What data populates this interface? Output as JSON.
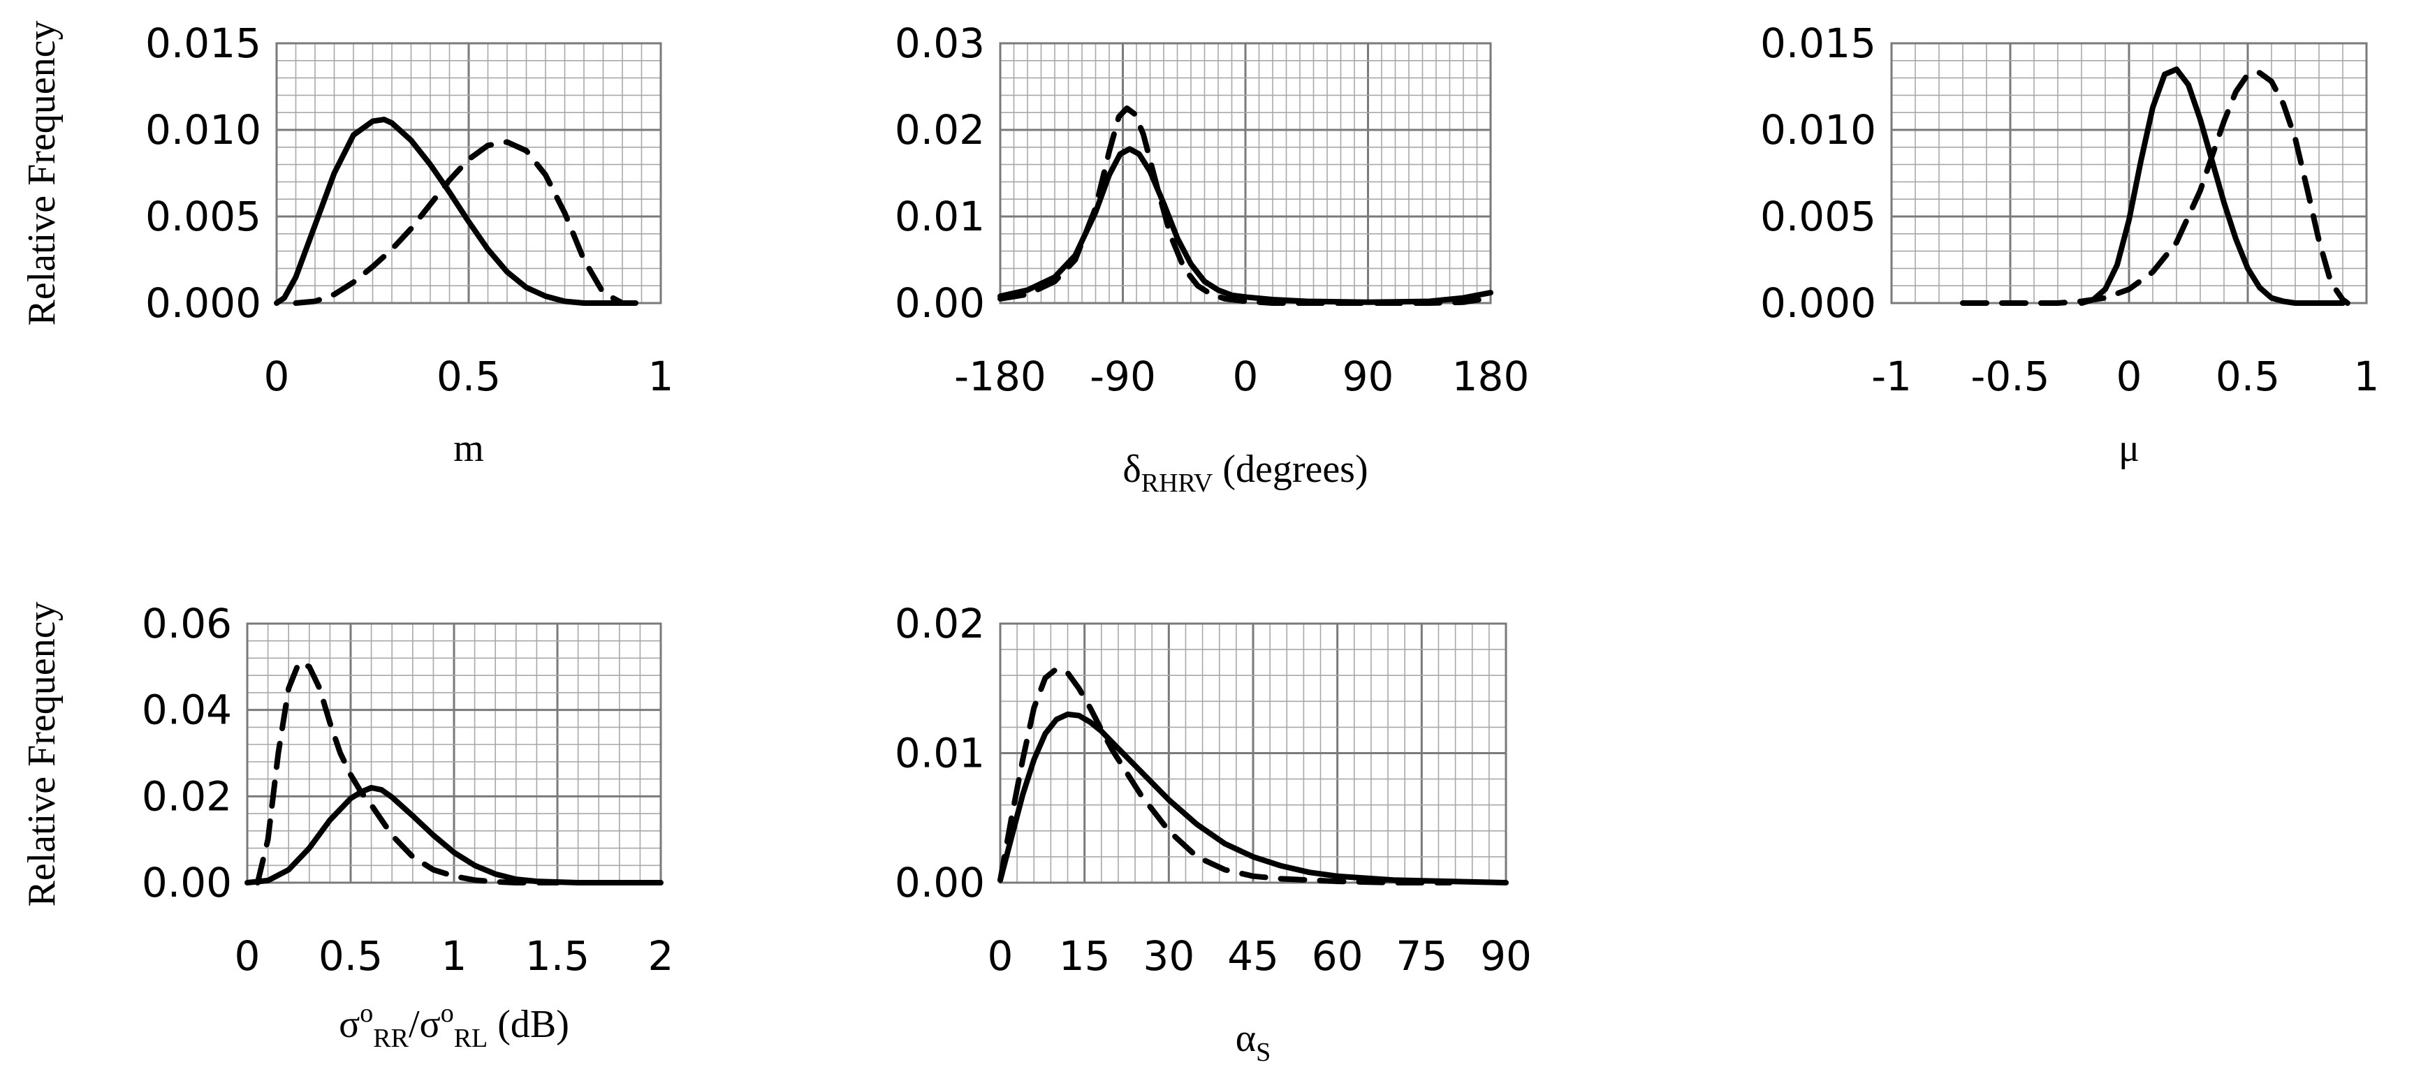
{
  "y_axis_title": "Relative Frequency",
  "chart_data": [
    {
      "type": "line",
      "id": "m",
      "xlabel": "m",
      "ylabel": "Relative Frequency",
      "xlim": [
        0,
        1
      ],
      "ylim": [
        0,
        0.015
      ],
      "xticks": [
        0,
        0.5,
        1
      ],
      "xtick_labels": [
        "0",
        "0.5",
        "1"
      ],
      "yticks": [
        0,
        0.005,
        0.01,
        0.015
      ],
      "ytick_labels": [
        "0.000",
        "0.005",
        "0.010",
        "0.015"
      ],
      "x_minor": 0.05,
      "y_minor": 0.001,
      "series": [
        {
          "name": "solid",
          "style": "solid",
          "x": [
            0,
            0.02,
            0.05,
            0.1,
            0.15,
            0.2,
            0.25,
            0.28,
            0.3,
            0.35,
            0.4,
            0.45,
            0.5,
            0.55,
            0.6,
            0.65,
            0.7,
            0.75,
            0.8,
            0.85,
            0.9
          ],
          "y": [
            0,
            0.0003,
            0.0015,
            0.0045,
            0.0075,
            0.0097,
            0.0105,
            0.0106,
            0.0104,
            0.0094,
            0.008,
            0.0064,
            0.0047,
            0.0031,
            0.0018,
            0.0009,
            0.0004,
            0.0001,
            0,
            0,
            0
          ]
        },
        {
          "name": "dashed",
          "style": "dashed",
          "x": [
            0.05,
            0.1,
            0.15,
            0.2,
            0.25,
            0.3,
            0.35,
            0.4,
            0.45,
            0.5,
            0.55,
            0.6,
            0.65,
            0.7,
            0.75,
            0.8,
            0.85,
            0.9,
            0.95
          ],
          "y": [
            0,
            0.0001,
            0.0005,
            0.0012,
            0.0021,
            0.0031,
            0.0043,
            0.0057,
            0.0071,
            0.0083,
            0.0091,
            0.0093,
            0.0088,
            0.0074,
            0.0052,
            0.0025,
            0.0006,
            0,
            0
          ]
        }
      ]
    },
    {
      "type": "line",
      "id": "delta",
      "xlabel_main": "δ",
      "xlabel_sub": "RHRV",
      "xlabel_suffix": " (degrees)",
      "xlim": [
        -180,
        180
      ],
      "ylim": [
        0,
        0.03
      ],
      "xticks": [
        -180,
        -90,
        0,
        90,
        180
      ],
      "xtick_labels": [
        "-180",
        "-90",
        "0",
        "90",
        "180"
      ],
      "yticks": [
        0,
        0.01,
        0.02,
        0.03
      ],
      "ytick_labels": [
        "0.00",
        "0.01",
        "0.02",
        "0.03"
      ],
      "x_minor": 10,
      "y_minor": 0.002,
      "series": [
        {
          "name": "solid",
          "style": "solid",
          "x": [
            -180,
            -160,
            -140,
            -125,
            -110,
            -100,
            -92,
            -85,
            -78,
            -70,
            -60,
            -50,
            -40,
            -30,
            -20,
            -10,
            0,
            20,
            45,
            90,
            135,
            160,
            180
          ],
          "y": [
            0.0008,
            0.0015,
            0.003,
            0.0055,
            0.0105,
            0.0148,
            0.0172,
            0.0178,
            0.0172,
            0.0152,
            0.0115,
            0.0075,
            0.0045,
            0.0025,
            0.0015,
            0.0009,
            0.0007,
            0.0004,
            0.0002,
            0.0001,
            0.0002,
            0.0006,
            0.0012
          ]
        },
        {
          "name": "dashed",
          "style": "dashed",
          "x": [
            -180,
            -160,
            -140,
            -125,
            -110,
            -100,
            -93,
            -87,
            -81,
            -75,
            -65,
            -55,
            -45,
            -35,
            -25,
            -15,
            0,
            20,
            40,
            90,
            135,
            160,
            180
          ],
          "y": [
            0.0005,
            0.001,
            0.0025,
            0.005,
            0.011,
            0.0175,
            0.0215,
            0.0225,
            0.0218,
            0.0195,
            0.0135,
            0.0078,
            0.004,
            0.002,
            0.001,
            0.0005,
            0.0002,
            0,
            0,
            0,
            0,
            0.0001,
            0.0006
          ]
        }
      ]
    },
    {
      "type": "line",
      "id": "mu",
      "xlabel": "μ",
      "xlim": [
        -1,
        1
      ],
      "ylim": [
        0,
        0.015
      ],
      "xticks": [
        -1,
        -0.5,
        0,
        0.5,
        1
      ],
      "xtick_labels": [
        "-1",
        "-0.5",
        "0",
        "0.5",
        "1"
      ],
      "yticks": [
        0,
        0.005,
        0.01,
        0.015
      ],
      "ytick_labels": [
        "0.000",
        "0.005",
        "0.010",
        "0.015"
      ],
      "x_minor": 0.1,
      "y_minor": 0.001,
      "series": [
        {
          "name": "solid",
          "style": "solid",
          "x": [
            -0.2,
            -0.15,
            -0.1,
            -0.05,
            0,
            0.05,
            0.1,
            0.15,
            0.2,
            0.25,
            0.3,
            0.35,
            0.4,
            0.45,
            0.5,
            0.55,
            0.6,
            0.65,
            0.7,
            0.8,
            0.9
          ],
          "y": [
            0,
            0.0002,
            0.0008,
            0.0022,
            0.0048,
            0.0082,
            0.0113,
            0.0132,
            0.0135,
            0.0126,
            0.0106,
            0.0082,
            0.0058,
            0.0037,
            0.002,
            0.0009,
            0.0003,
            0.0001,
            0,
            0,
            0
          ]
        },
        {
          "name": "dashed",
          "style": "dashed",
          "x": [
            -0.7,
            -0.5,
            -0.3,
            -0.2,
            -0.1,
            0,
            0.1,
            0.2,
            0.3,
            0.35,
            0.4,
            0.45,
            0.5,
            0.55,
            0.6,
            0.65,
            0.7,
            0.75,
            0.8,
            0.85,
            0.9,
            0.92
          ],
          "y": [
            0,
            0,
            0,
            0.0001,
            0.0003,
            0.0008,
            0.0018,
            0.0035,
            0.0065,
            0.0085,
            0.0105,
            0.0122,
            0.0132,
            0.0133,
            0.0128,
            0.0115,
            0.0095,
            0.0066,
            0.0036,
            0.0012,
            0.0002,
            0
          ]
        }
      ]
    },
    {
      "type": "line",
      "id": "sigma",
      "xlabel_parts": [
        "σ",
        "o",
        "RR",
        "/σ",
        "o",
        "RL",
        " (dB)"
      ],
      "ylabel": "Relative Frequency",
      "xlim": [
        0,
        2
      ],
      "ylim": [
        0,
        0.06
      ],
      "xticks": [
        0,
        0.5,
        1,
        1.5,
        2
      ],
      "xtick_labels": [
        "0",
        "0.5",
        "1",
        "1.5",
        "2"
      ],
      "yticks": [
        0,
        0.02,
        0.04,
        0.06
      ],
      "ytick_labels": [
        "0.00",
        "0.02",
        "0.04",
        "0.06"
      ],
      "x_minor": 0.1,
      "y_minor": 0.004,
      "series": [
        {
          "name": "solid",
          "style": "solid",
          "x": [
            0,
            0.1,
            0.2,
            0.3,
            0.4,
            0.5,
            0.55,
            0.6,
            0.65,
            0.7,
            0.8,
            0.9,
            1.0,
            1.1,
            1.2,
            1.3,
            1.4,
            1.6,
            1.8,
            2.0
          ],
          "y": [
            0,
            0.0005,
            0.003,
            0.008,
            0.0145,
            0.0195,
            0.021,
            0.022,
            0.0215,
            0.0198,
            0.0155,
            0.011,
            0.007,
            0.004,
            0.002,
            0.0008,
            0.0003,
            0,
            0,
            0
          ]
        },
        {
          "name": "dashed",
          "style": "dashed",
          "x": [
            0.05,
            0.1,
            0.15,
            0.2,
            0.25,
            0.3,
            0.35,
            0.4,
            0.45,
            0.5,
            0.55,
            0.6,
            0.7,
            0.8,
            0.9,
            1.0,
            1.1,
            1.2,
            1.3,
            1.5
          ],
          "y": [
            0,
            0.01,
            0.03,
            0.045,
            0.051,
            0.05,
            0.045,
            0.037,
            0.03,
            0.025,
            0.021,
            0.018,
            0.011,
            0.006,
            0.003,
            0.0015,
            0.0006,
            0.0002,
            0,
            0
          ]
        }
      ]
    },
    {
      "type": "line",
      "id": "alpha",
      "xlabel_main": "α",
      "xlabel_sub": "S",
      "xlim": [
        0,
        90
      ],
      "ylim": [
        0,
        0.02
      ],
      "xticks": [
        0,
        15,
        30,
        45,
        60,
        75,
        90
      ],
      "xtick_labels": [
        "0",
        "15",
        "30",
        "45",
        "60",
        "75",
        "90"
      ],
      "yticks": [
        0,
        0.01,
        0.02
      ],
      "ytick_labels": [
        "0.00",
        "0.01",
        "0.02"
      ],
      "x_minor": 3,
      "y_minor": 0.002,
      "series": [
        {
          "name": "solid",
          "style": "solid",
          "x": [
            0,
            2,
            4,
            6,
            8,
            10,
            12,
            14,
            16,
            18,
            20,
            25,
            30,
            35,
            40,
            45,
            50,
            55,
            60,
            70,
            80,
            90
          ],
          "y": [
            0.0002,
            0.0035,
            0.0068,
            0.0095,
            0.0115,
            0.0126,
            0.013,
            0.0129,
            0.0124,
            0.0117,
            0.0108,
            0.0086,
            0.0064,
            0.0045,
            0.003,
            0.002,
            0.0013,
            0.0008,
            0.0005,
            0.0002,
            0.0001,
            0
          ]
        },
        {
          "name": "dashed",
          "style": "dashed",
          "x": [
            0,
            2,
            4,
            6,
            8,
            10,
            12,
            14,
            16,
            18,
            20,
            25,
            30,
            35,
            40,
            45,
            50,
            55,
            60,
            70,
            80
          ],
          "y": [
            0.0002,
            0.005,
            0.0095,
            0.0135,
            0.0158,
            0.0165,
            0.0162,
            0.015,
            0.0135,
            0.0118,
            0.0102,
            0.0068,
            0.004,
            0.002,
            0.001,
            0.0005,
            0.0003,
            0.0002,
            0.0001,
            0,
            0
          ]
        }
      ]
    }
  ]
}
